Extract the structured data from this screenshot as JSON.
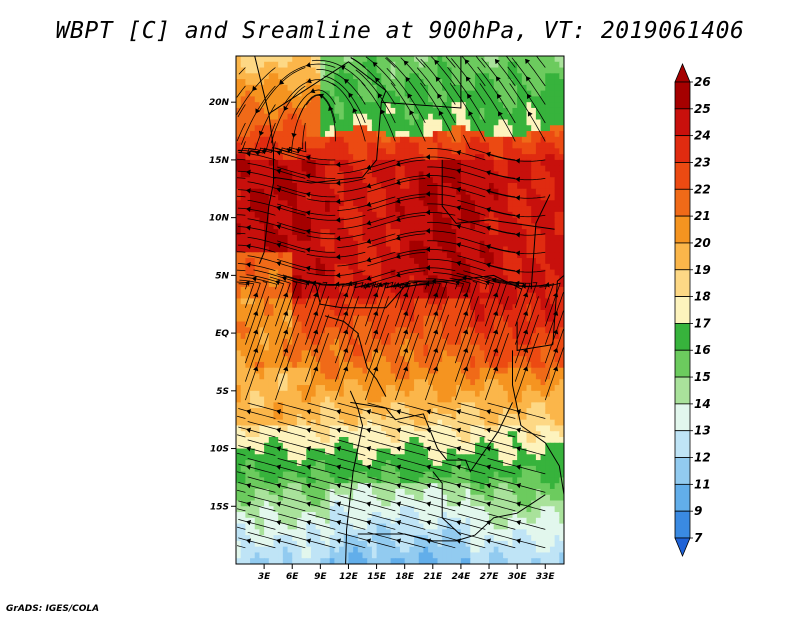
{
  "title": "WBPT [C] and Sreamline at 900hPa, VT: 2019061406",
  "footer": "GrADS: IGES/COLA",
  "map": {
    "variable": "Wet-bulb potential temperature",
    "units": "C",
    "level": "900hPa",
    "valid_time": "2019061406",
    "lon_range": [
      0,
      35
    ],
    "lat_range": [
      -20,
      24
    ],
    "lon_ticks": [
      {
        "value": 3,
        "label": "3E"
      },
      {
        "value": 6,
        "label": "6E"
      },
      {
        "value": 9,
        "label": "9E"
      },
      {
        "value": 12,
        "label": "12E"
      },
      {
        "value": 15,
        "label": "15E"
      },
      {
        "value": 18,
        "label": "18E"
      },
      {
        "value": 21,
        "label": "21E"
      },
      {
        "value": 24,
        "label": "24E"
      },
      {
        "value": 27,
        "label": "27E"
      },
      {
        "value": 30,
        "label": "30E"
      },
      {
        "value": 33,
        "label": "33E"
      }
    ],
    "lat_ticks": [
      {
        "value": 20,
        "label": "20N"
      },
      {
        "value": 15,
        "label": "15N"
      },
      {
        "value": 10,
        "label": "10N"
      },
      {
        "value": 5,
        "label": "5N"
      },
      {
        "value": 0,
        "label": "EQ"
      },
      {
        "value": -5,
        "label": "5S"
      },
      {
        "value": -10,
        "label": "10S"
      },
      {
        "value": -15,
        "label": "15S"
      }
    ]
  },
  "colorbar": {
    "levels": [
      26,
      25,
      24,
      23,
      22,
      21,
      20,
      19,
      18,
      17,
      16,
      15,
      14,
      13,
      12,
      11,
      9,
      7
    ],
    "colors": [
      "#a50000",
      "#c8100c",
      "#e02b10",
      "#ec4a12",
      "#f06a18",
      "#f59420",
      "#fbb64a",
      "#fdd885",
      "#fdf3bd",
      "#37b33c",
      "#6ccb5e",
      "#a9e29b",
      "#e2f7ed",
      "#bfe4f6",
      "#92cbf0",
      "#62aeea",
      "#3a8ae2",
      "#1f62d6"
    ],
    "top_color": "#a50000",
    "bottom_color": "#1f62d6"
  }
}
